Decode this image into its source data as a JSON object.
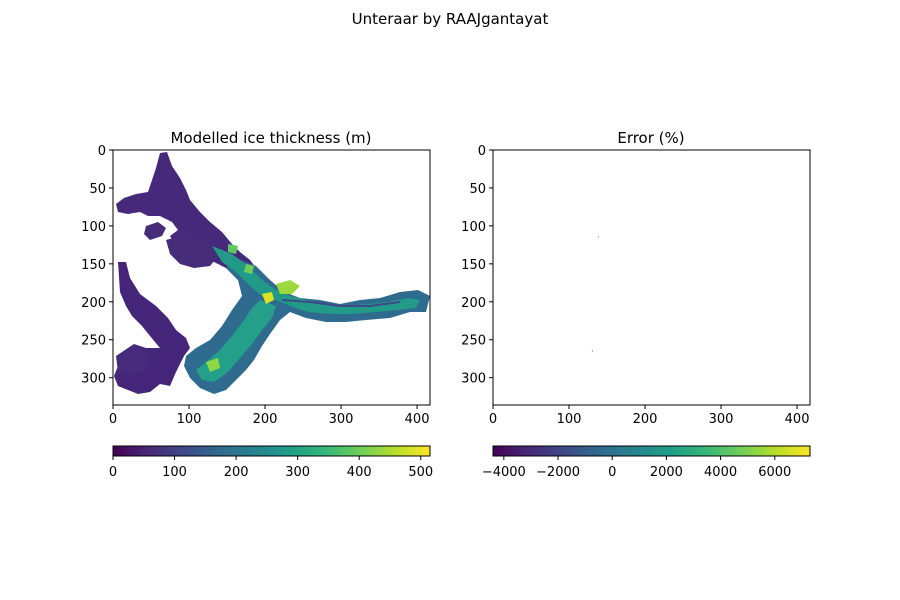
{
  "figure": {
    "title": "Unteraar by RAAJgantayat"
  },
  "chart_data": [
    {
      "type": "heatmap",
      "title": "Modelled ice thickness (m)",
      "xlim": [
        0,
        417
      ],
      "ylim": [
        336,
        0
      ],
      "xticks": [
        "0",
        "100",
        "200",
        "300",
        "400"
      ],
      "yticks": [
        "0",
        "50",
        "100",
        "150",
        "200",
        "250",
        "300"
      ],
      "colormap": "viridis",
      "colorbar": {
        "range": [
          0,
          515
        ],
        "ticks": [
          "0",
          "100",
          "200",
          "300",
          "400",
          "500"
        ],
        "placement": "bottom"
      }
    },
    {
      "type": "heatmap",
      "title": "Error (%)",
      "xlim": [
        0,
        417
      ],
      "ylim": [
        336,
        0
      ],
      "xticks": [
        "0",
        "100",
        "200",
        "300",
        "400"
      ],
      "yticks": [
        "0",
        "50",
        "100",
        "150",
        "200",
        "250",
        "300"
      ],
      "colormap": "viridis",
      "colorbar": {
        "range": [
          -4400,
          7300
        ],
        "ticks": [
          "−4000",
          "−2000",
          "0",
          "2000",
          "4000",
          "6000"
        ],
        "placement": "bottom"
      },
      "nonzero_cells": [
        {
          "x": 138,
          "y": 114
        },
        {
          "x": 130,
          "y": 264
        }
      ]
    }
  ],
  "colors": {
    "viridis": [
      "#440154",
      "#482878",
      "#3e4989",
      "#31688e",
      "#26828e",
      "#1f9e89",
      "#35b779",
      "#6ece58",
      "#b5de2b",
      "#fde725"
    ]
  }
}
